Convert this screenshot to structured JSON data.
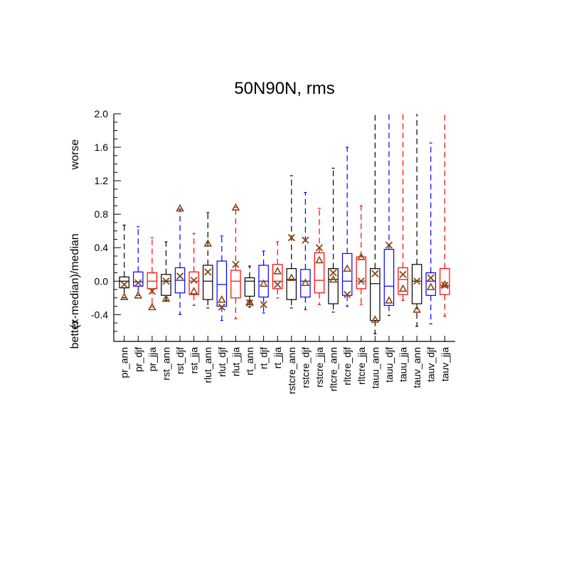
{
  "chart_data": {
    "type": "box",
    "title": "50N90N, rms",
    "ylabel": "(x-median)/median",
    "ylabel_low": "better",
    "ylabel_high": "worse",
    "ylim": [
      -0.72,
      2.0
    ],
    "yticks": [
      -0.4,
      0.0,
      0.4,
      0.8,
      1.2,
      1.6,
      2.0
    ],
    "ytick_labels": [
      "-0.4",
      "0.0",
      "0.4",
      "0.8",
      "1.2",
      "1.6",
      "2.0"
    ],
    "series_colors": {
      "ann": "#000000",
      "djf": "#0000ff",
      "jja": "#ff0000"
    },
    "marker_color": "#8b4513",
    "boxes": [
      {
        "label": "pr_ann",
        "season": "ann",
        "wlo": -0.2,
        "q1": -0.08,
        "median": 0.0,
        "q3": 0.05,
        "whi": 0.67,
        "x_marker": -0.04,
        "tri_marker": -0.19
      },
      {
        "label": "pr_djf",
        "season": "djf",
        "wlo": -0.17,
        "q1": -0.06,
        "median": -0.01,
        "q3": 0.11,
        "whi": 0.65,
        "x_marker": -0.02,
        "tri_marker": -0.17
      },
      {
        "label": "pr_jja",
        "season": "jja",
        "wlo": -0.31,
        "q1": -0.09,
        "median": 0.0,
        "q3": 0.1,
        "whi": 0.52,
        "x_marker": -0.12,
        "tri_marker": -0.31
      },
      {
        "label": "rst_ann",
        "season": "ann",
        "wlo": -0.23,
        "q1": -0.17,
        "median": 0.0,
        "q3": 0.08,
        "whi": 0.47,
        "x_marker": 0.0,
        "tri_marker": -0.21
      },
      {
        "label": "rst_djf",
        "season": "djf",
        "wlo": -0.4,
        "q1": -0.14,
        "median": 0.01,
        "q3": 0.16,
        "whi": 0.86,
        "x_marker": 0.06,
        "tri_marker": 0.87
      },
      {
        "label": "rst_jja",
        "season": "jja",
        "wlo": -0.29,
        "q1": -0.16,
        "median": 0.0,
        "q3": 0.11,
        "whi": 0.57,
        "x_marker": 0.01,
        "tri_marker": -0.12
      },
      {
        "label": "rlut_ann",
        "season": "ann",
        "wlo": -0.32,
        "q1": -0.22,
        "median": 0.0,
        "q3": 0.19,
        "whi": 0.82,
        "x_marker": 0.11,
        "tri_marker": 0.45
      },
      {
        "label": "rlut_djf",
        "season": "djf",
        "wlo": -0.47,
        "q1": -0.3,
        "median": -0.04,
        "q3": 0.24,
        "whi": 0.54,
        "x_marker": -0.31,
        "tri_marker": -0.22
      },
      {
        "label": "rlut_jja",
        "season": "jja",
        "wlo": -0.45,
        "q1": -0.2,
        "median": 0.0,
        "q3": 0.13,
        "whi": 0.88,
        "x_marker": 0.2,
        "tri_marker": 0.88
      },
      {
        "label": "rt_ann",
        "season": "ann",
        "wlo": -0.31,
        "q1": -0.18,
        "median": 0.0,
        "q3": 0.04,
        "whi": 0.18,
        "x_marker": -0.26,
        "tri_marker": -0.25
      },
      {
        "label": "rt_djf",
        "season": "djf",
        "wlo": -0.38,
        "q1": -0.19,
        "median": 0.0,
        "q3": 0.19,
        "whi": 0.36,
        "x_marker": -0.28,
        "tri_marker": -0.03
      },
      {
        "label": "rt_jja",
        "season": "jja",
        "wlo": -0.2,
        "q1": -0.09,
        "median": 0.0,
        "q3": 0.2,
        "whi": 0.47,
        "x_marker": -0.04,
        "tri_marker": 0.12
      },
      {
        "label": "rstcre_ann",
        "season": "ann",
        "wlo": -0.32,
        "q1": -0.22,
        "median": 0.02,
        "q3": 0.15,
        "whi": 1.26,
        "x_marker": 0.52,
        "tri_marker": 0.04
      },
      {
        "label": "rstcre_djf",
        "season": "djf",
        "wlo": -0.34,
        "q1": -0.19,
        "median": 0.0,
        "q3": 0.14,
        "whi": 1.06,
        "x_marker": 0.49,
        "tri_marker": -0.02
      },
      {
        "label": "rstcre_jja",
        "season": "jja",
        "wlo": -0.28,
        "q1": -0.14,
        "median": 0.01,
        "q3": 0.34,
        "whi": 0.87,
        "x_marker": 0.4,
        "tri_marker": 0.25
      },
      {
        "label": "rltcre_ann",
        "season": "ann",
        "wlo": -0.37,
        "q1": -0.27,
        "median": 0.02,
        "q3": 0.15,
        "whi": 1.35,
        "x_marker": 0.1,
        "tri_marker": 0.02
      },
      {
        "label": "rltcre_djf",
        "season": "djf",
        "wlo": -0.3,
        "q1": -0.17,
        "median": 0.0,
        "q3": 0.33,
        "whi": 1.6,
        "x_marker": -0.16,
        "tri_marker": 0.15
      },
      {
        "label": "rltcre_jja",
        "season": "jja",
        "wlo": -0.28,
        "q1": -0.09,
        "median": 0.0,
        "q3": 0.29,
        "whi": 0.9,
        "x_marker": 0.0,
        "tri_marker": 0.29
      },
      {
        "label": "tauu_ann",
        "season": "ann",
        "wlo": -0.63,
        "q1": -0.47,
        "median": -0.03,
        "q3": 0.15,
        "whi": 2.0,
        "x_marker": 0.09,
        "tri_marker": -0.46
      },
      {
        "label": "tauu_djf",
        "season": "djf",
        "wlo": -0.41,
        "q1": -0.29,
        "median": -0.06,
        "q3": 0.38,
        "whi": 2.0,
        "x_marker": 0.43,
        "tri_marker": -0.23
      },
      {
        "label": "tauu_jja",
        "season": "jja",
        "wlo": -0.23,
        "q1": -0.16,
        "median": 0.02,
        "q3": 0.16,
        "whi": 2.0,
        "x_marker": 0.08,
        "tri_marker": -0.09
      },
      {
        "label": "tauv_ann",
        "season": "ann",
        "wlo": -0.54,
        "q1": -0.27,
        "median": 0.0,
        "q3": 0.2,
        "whi": 2.0,
        "x_marker": 0.0,
        "tri_marker": -0.34
      },
      {
        "label": "tauv_djf",
        "season": "djf",
        "wlo": -0.51,
        "q1": -0.17,
        "median": 0.0,
        "q3": 0.1,
        "whi": 1.65,
        "x_marker": 0.04,
        "tri_marker": -0.07
      },
      {
        "label": "tauv_jja",
        "season": "jja",
        "wlo": -0.42,
        "q1": -0.16,
        "median": -0.05,
        "q3": 0.15,
        "whi": 2.0,
        "x_marker": -0.05,
        "tri_marker": -0.04
      }
    ]
  }
}
